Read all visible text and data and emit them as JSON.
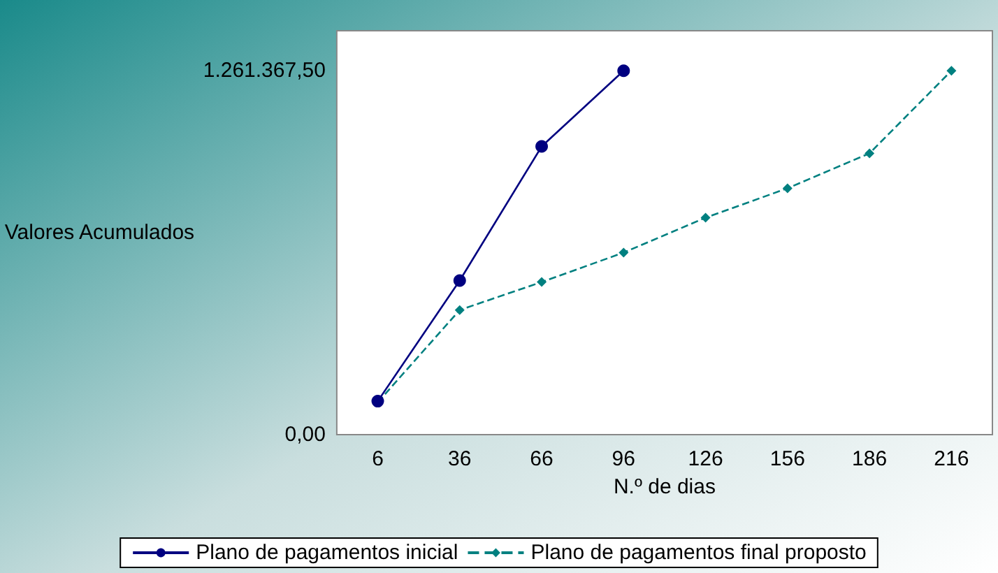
{
  "chart_data": {
    "type": "line",
    "xlabel": "N.º de dias",
    "ylabel": "Valores Acumulados",
    "categories": [
      "6",
      "36",
      "66",
      "96",
      "126",
      "156",
      "186",
      "216"
    ],
    "series": [
      {
        "name": "Plano de pagamentos inicial",
        "color": "#000080",
        "marker": "circle",
        "line_style": "solid",
        "values": [
          116000,
          534000,
          999000,
          1261367.5,
          null,
          null,
          null,
          null
        ]
      },
      {
        "name": "Plano de pagamentos final proposto",
        "color": "#008080",
        "marker": "diamond",
        "line_style": "dashed",
        "values": [
          112000,
          432000,
          529000,
          631000,
          752000,
          854000,
          975000,
          1261367.5
        ]
      }
    ],
    "ylim": [
      0,
      1400000
    ],
    "yticks": [
      {
        "value": 0,
        "label": "0,00"
      },
      {
        "value": 1261367.5,
        "label": "1.261.367,50"
      }
    ],
    "grid": false,
    "legend": "bottom"
  }
}
